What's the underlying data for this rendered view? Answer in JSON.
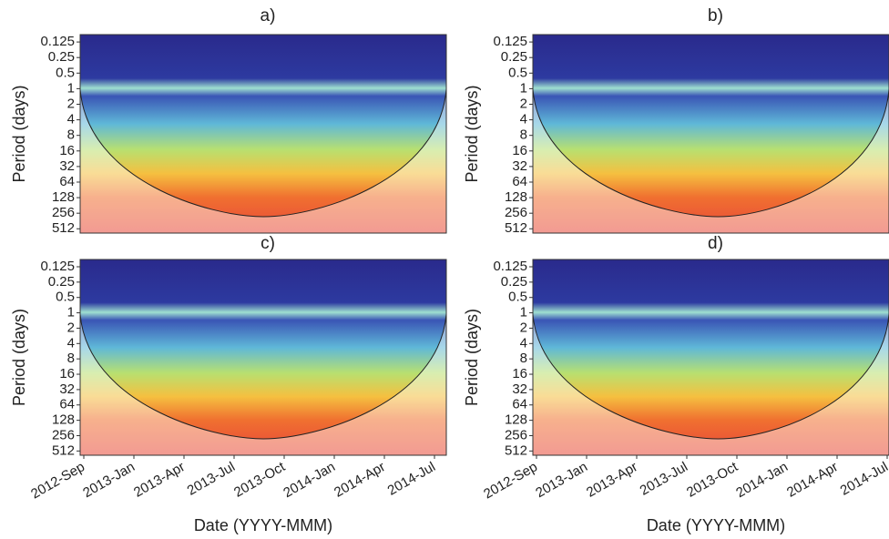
{
  "chart_data": [
    {
      "type": "heatmap",
      "title": "a)",
      "ylabel": "Period (days)",
      "yscale": "log",
      "ylim": [
        0.09,
        620
      ],
      "yticks": [
        0.125,
        0.25,
        0.5,
        1,
        2,
        4,
        8,
        16,
        32,
        64,
        128,
        256,
        512
      ]
    },
    {
      "type": "heatmap",
      "title": "b)",
      "ylabel": "Period (days)",
      "yscale": "log",
      "ylim": [
        0.09,
        620
      ],
      "yticks": [
        0.125,
        0.25,
        0.5,
        1,
        2,
        4,
        8,
        16,
        32,
        64,
        128,
        256,
        512
      ]
    },
    {
      "type": "heatmap",
      "title": "c)",
      "ylabel": "Period (days)",
      "xlabel": "Date (YYYY-MMM)",
      "yscale": "log",
      "ylim": [
        0.09,
        620
      ],
      "yticks": [
        0.125,
        0.25,
        0.5,
        1,
        2,
        4,
        8,
        16,
        32,
        64,
        128,
        256,
        512
      ],
      "categories": [
        "2012-Sep",
        "2013-Jan",
        "2013-Apr",
        "2013-Jul",
        "2013-Oct",
        "2014-Jan",
        "2014-Apr",
        "2014-Jul"
      ]
    },
    {
      "type": "heatmap",
      "title": "d)",
      "ylabel": "Period (days)",
      "xlabel": "Date (YYYY-MMM)",
      "yscale": "log",
      "ylim": [
        0.09,
        620
      ],
      "yticks": [
        0.125,
        0.25,
        0.5,
        1,
        2,
        4,
        8,
        16,
        32,
        64,
        128,
        256,
        512
      ],
      "categories": [
        "2012-Sep",
        "2013-Jan",
        "2013-Apr",
        "2013-Jul",
        "2013-Oct",
        "2014-Jan",
        "2014-Apr",
        "2014-Jul"
      ]
    }
  ]
}
